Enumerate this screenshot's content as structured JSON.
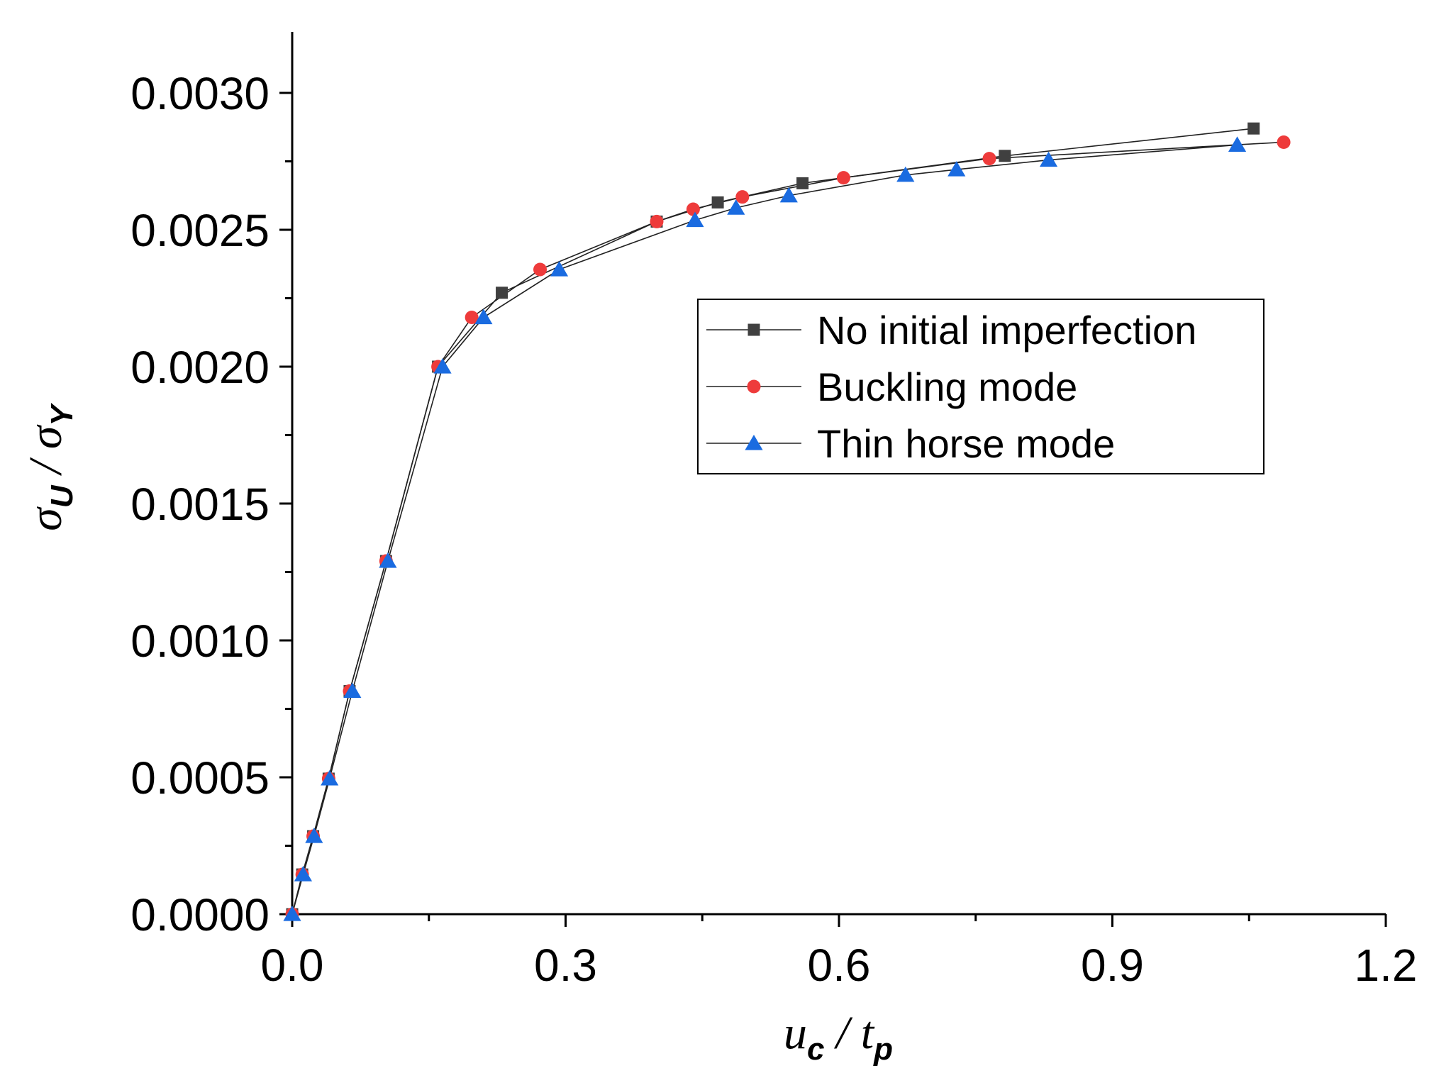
{
  "chart_data": {
    "type": "line",
    "title": "",
    "xlabel": "u_c / t_p",
    "ylabel": "σ_U / σ_Y",
    "x_label_parts": {
      "main1": "u",
      "sub1": "c",
      "sep": " / ",
      "main2": "t",
      "sub2": "p"
    },
    "y_label_parts": {
      "main1": "σ",
      "sub1": "U",
      "sep": " / ",
      "main2": "σ",
      "sub2": "Y"
    },
    "xlim": [
      0.0,
      1.2
    ],
    "ylim": [
      0.0,
      0.0032
    ],
    "x_ticks": [
      "0.0",
      "0.3",
      "0.6",
      "0.9",
      "1.2"
    ],
    "x_tick_values": [
      0.0,
      0.3,
      0.6,
      0.9,
      1.2
    ],
    "y_ticks": [
      "0.0000",
      "0.0005",
      "0.0010",
      "0.0015",
      "0.0020",
      "0.0025",
      "0.0030"
    ],
    "y_tick_values": [
      0.0,
      0.0005,
      0.001,
      0.0015,
      0.002,
      0.0025,
      0.003
    ],
    "grid": false,
    "legend_position": "center-right",
    "series": [
      {
        "name": "No initial imperfection",
        "marker": "square",
        "color": "#404040",
        "x": [
          0.0,
          0.011,
          0.023,
          0.04,
          0.063,
          0.103,
          0.16,
          0.23,
          0.4,
          0.467,
          0.56,
          0.782,
          1.055
        ],
        "y": [
          0.0,
          0.000145,
          0.000285,
          0.000495,
          0.000815,
          0.00129,
          0.002,
          0.00227,
          0.00253,
          0.0026,
          0.00267,
          0.00277,
          0.00287
        ]
      },
      {
        "name": "Buckling mode",
        "marker": "circle",
        "color": "#ee3b3b",
        "x": [
          0.0,
          0.011,
          0.023,
          0.04,
          0.063,
          0.103,
          0.16,
          0.197,
          0.272,
          0.4,
          0.44,
          0.494,
          0.605,
          0.765,
          1.088
        ],
        "y": [
          0.0,
          0.000145,
          0.000285,
          0.000495,
          0.000815,
          0.00129,
          0.002,
          0.00218,
          0.002355,
          0.00253,
          0.002575,
          0.00262,
          0.00269,
          0.00276,
          0.00282
        ]
      },
      {
        "name": "Thin horse mode",
        "marker": "triangle",
        "color": "#1a6be0",
        "x": [
          0.0,
          0.012,
          0.024,
          0.041,
          0.066,
          0.105,
          0.165,
          0.21,
          0.293,
          0.442,
          0.487,
          0.545,
          0.673,
          0.729,
          0.83,
          1.037
        ],
        "y": [
          0.0,
          0.000145,
          0.000285,
          0.000495,
          0.000815,
          0.00129,
          0.002,
          0.00218,
          0.002355,
          0.002535,
          0.00258,
          0.002625,
          0.0027,
          0.00272,
          0.002755,
          0.00281
        ]
      }
    ]
  }
}
